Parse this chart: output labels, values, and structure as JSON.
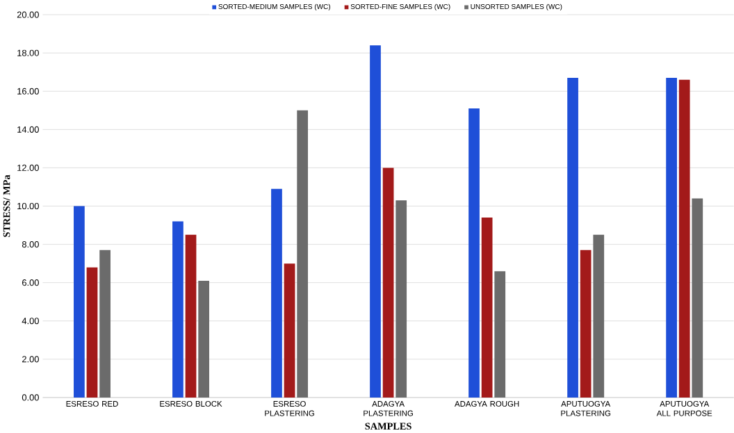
{
  "chart_data": {
    "type": "bar",
    "xlabel": "SAMPLES",
    "ylabel": "STRESS/ MPa",
    "categories": [
      "ESRESO RED",
      "ESRESO BLOCK",
      "ESRESO PLASTERING",
      "ADAGYA PLASTERING",
      "ADAGYA ROUGH",
      "APUTUOGYA PLASTERING",
      "APUTUOGYA ALL PURPOSE"
    ],
    "series": [
      {
        "name": "SORTED-MEDIUM SAMPLES (WC)",
        "color": "#1f4fd8",
        "values": [
          10.0,
          9.2,
          10.9,
          18.4,
          15.1,
          16.7,
          16.7
        ]
      },
      {
        "name": "SORTED-FINE SAMPLES (WC)",
        "color": "#a31a1a",
        "values": [
          6.8,
          8.5,
          7.0,
          12.0,
          9.4,
          7.7,
          16.6
        ]
      },
      {
        "name": "UNSORTED SAMPLES (WC)",
        "color": "#6b6b6b",
        "values": [
          7.7,
          6.1,
          15.0,
          10.3,
          6.6,
          8.5,
          10.4
        ]
      }
    ],
    "ylim": [
      0,
      20
    ],
    "yticks": [
      {
        "value": 0,
        "label": "0.00"
      },
      {
        "value": 2,
        "label": "2.00"
      },
      {
        "value": 4,
        "label": "4.00"
      },
      {
        "value": 6,
        "label": "6.00"
      },
      {
        "value": 8,
        "label": "8.00"
      },
      {
        "value": 10,
        "label": "10.00"
      },
      {
        "value": 12,
        "label": "12.00"
      },
      {
        "value": 14,
        "label": "14.00"
      },
      {
        "value": 16,
        "label": "16.00"
      },
      {
        "value": 18,
        "label": "18.00"
      },
      {
        "value": 20,
        "label": "20.00"
      }
    ],
    "grid": "y",
    "legend": "top"
  }
}
